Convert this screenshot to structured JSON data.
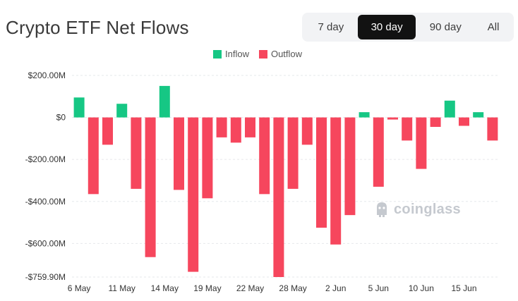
{
  "header": {
    "title": "Crypto ETF Net Flows"
  },
  "range_tabs": [
    {
      "label": "7 day",
      "active": false
    },
    {
      "label": "30 day",
      "active": true
    },
    {
      "label": "90 day",
      "active": false
    },
    {
      "label": "All",
      "active": false
    }
  ],
  "legend": {
    "inflow_label": "Inflow",
    "outflow_label": "Outflow"
  },
  "colors": {
    "inflow": "#16c784",
    "outflow": "#f6465d",
    "grid": "#e6e8eb",
    "tick_text": "#333333"
  },
  "watermark": {
    "text": "coinglass"
  },
  "chart_data": {
    "type": "bar",
    "title": "Crypto ETF Net Flows",
    "xlabel": "",
    "ylabel": "",
    "ylim": [
      -759.9,
      200
    ],
    "y_ticks": [
      {
        "value": 200,
        "label": "$200.00M"
      },
      {
        "value": 0,
        "label": "$0"
      },
      {
        "value": -200,
        "label": "-$200.00M"
      },
      {
        "value": -400,
        "label": "-$400.00M"
      },
      {
        "value": -600,
        "label": "-$600.00M"
      },
      {
        "value": -759.9,
        "label": "-$759.90M"
      }
    ],
    "x_tick_labels": [
      {
        "index": 0,
        "label": "6 May"
      },
      {
        "index": 3,
        "label": "11 May"
      },
      {
        "index": 6,
        "label": "14 May"
      },
      {
        "index": 9,
        "label": "19 May"
      },
      {
        "index": 12,
        "label": "22 May"
      },
      {
        "index": 15,
        "label": "28 May"
      },
      {
        "index": 18,
        "label": "2 Jun"
      },
      {
        "index": 21,
        "label": "5 Jun"
      },
      {
        "index": 24,
        "label": "10 Jun"
      },
      {
        "index": 27,
        "label": "15 Jun"
      }
    ],
    "grid": true,
    "legend_position": "top-center",
    "values": [
      95,
      -365,
      -130,
      65,
      -340,
      -665,
      150,
      -345,
      -735,
      -385,
      -95,
      -120,
      -95,
      -365,
      -759.9,
      -340,
      -130,
      -525,
      -605,
      -465,
      25,
      -330,
      -10,
      -110,
      -245,
      -45,
      80,
      -40,
      25,
      -110
    ]
  }
}
